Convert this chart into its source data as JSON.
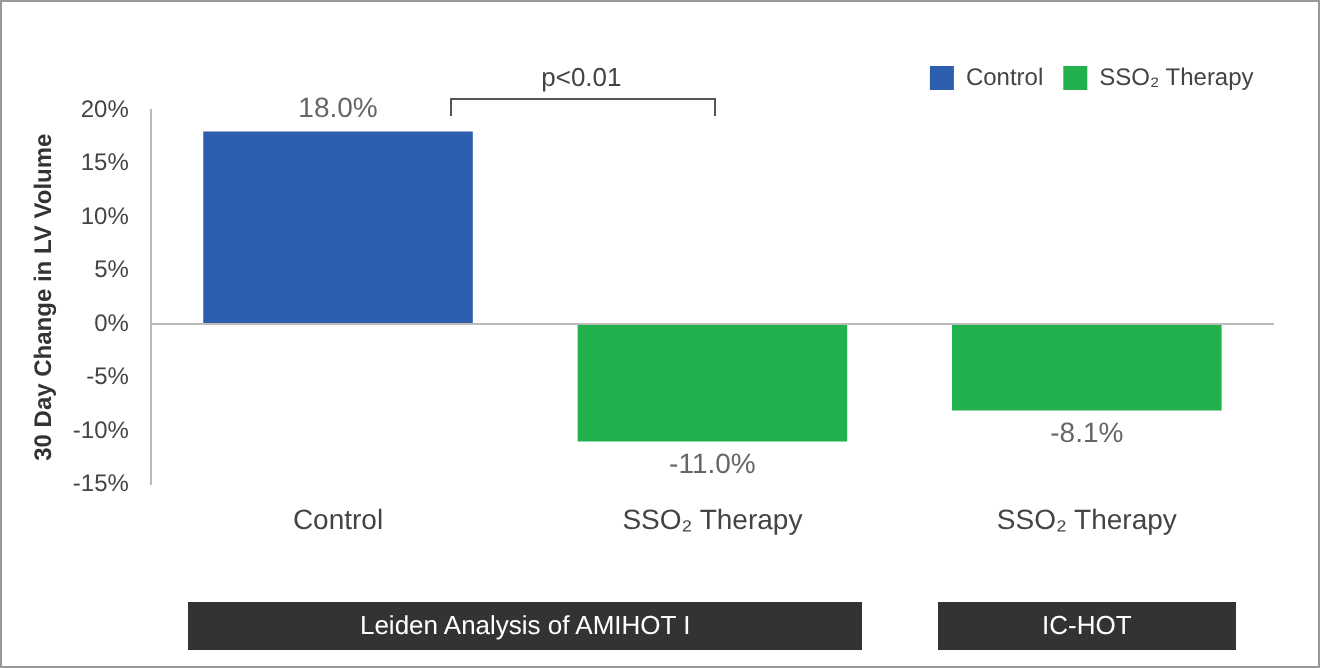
{
  "chart_data": {
    "type": "bar",
    "ylabel": "30 Day Change in LV Volume",
    "categories": [
      "Control",
      "SSO₂ Therapy",
      "SSO₂ Therapy"
    ],
    "series": [
      {
        "name": "Control",
        "color": "#2e5fae",
        "values": [
          18.0,
          null,
          null
        ],
        "value_labels": [
          "18.0%",
          null,
          null
        ]
      },
      {
        "name": "SSO₂ Therapy",
        "color": "#22b14c",
        "values": [
          null,
          -11.0,
          -8.1
        ],
        "value_labels": [
          null,
          "-11.0%",
          "-8.1%"
        ]
      }
    ],
    "ylim": [
      -15,
      20
    ],
    "yticks": [
      {
        "value": -15,
        "label": "-15%"
      },
      {
        "value": -10,
        "label": "-10%"
      },
      {
        "value": -5,
        "label": "-5%"
      },
      {
        "value": 0,
        "label": "0%"
      },
      {
        "value": 5,
        "label": "5%"
      },
      {
        "value": 10,
        "label": "10%"
      },
      {
        "value": 15,
        "label": "15%"
      },
      {
        "value": 20,
        "label": "20%"
      }
    ],
    "annotations": [
      "p<0.01",
      "Leiden Analysis of AMIHOT I",
      "IC-HOT"
    ],
    "ref_lines": [
      {
        "axis": "y",
        "value": 0,
        "color": "#bbbbbb"
      }
    ],
    "grid": false,
    "legend": "top right"
  }
}
